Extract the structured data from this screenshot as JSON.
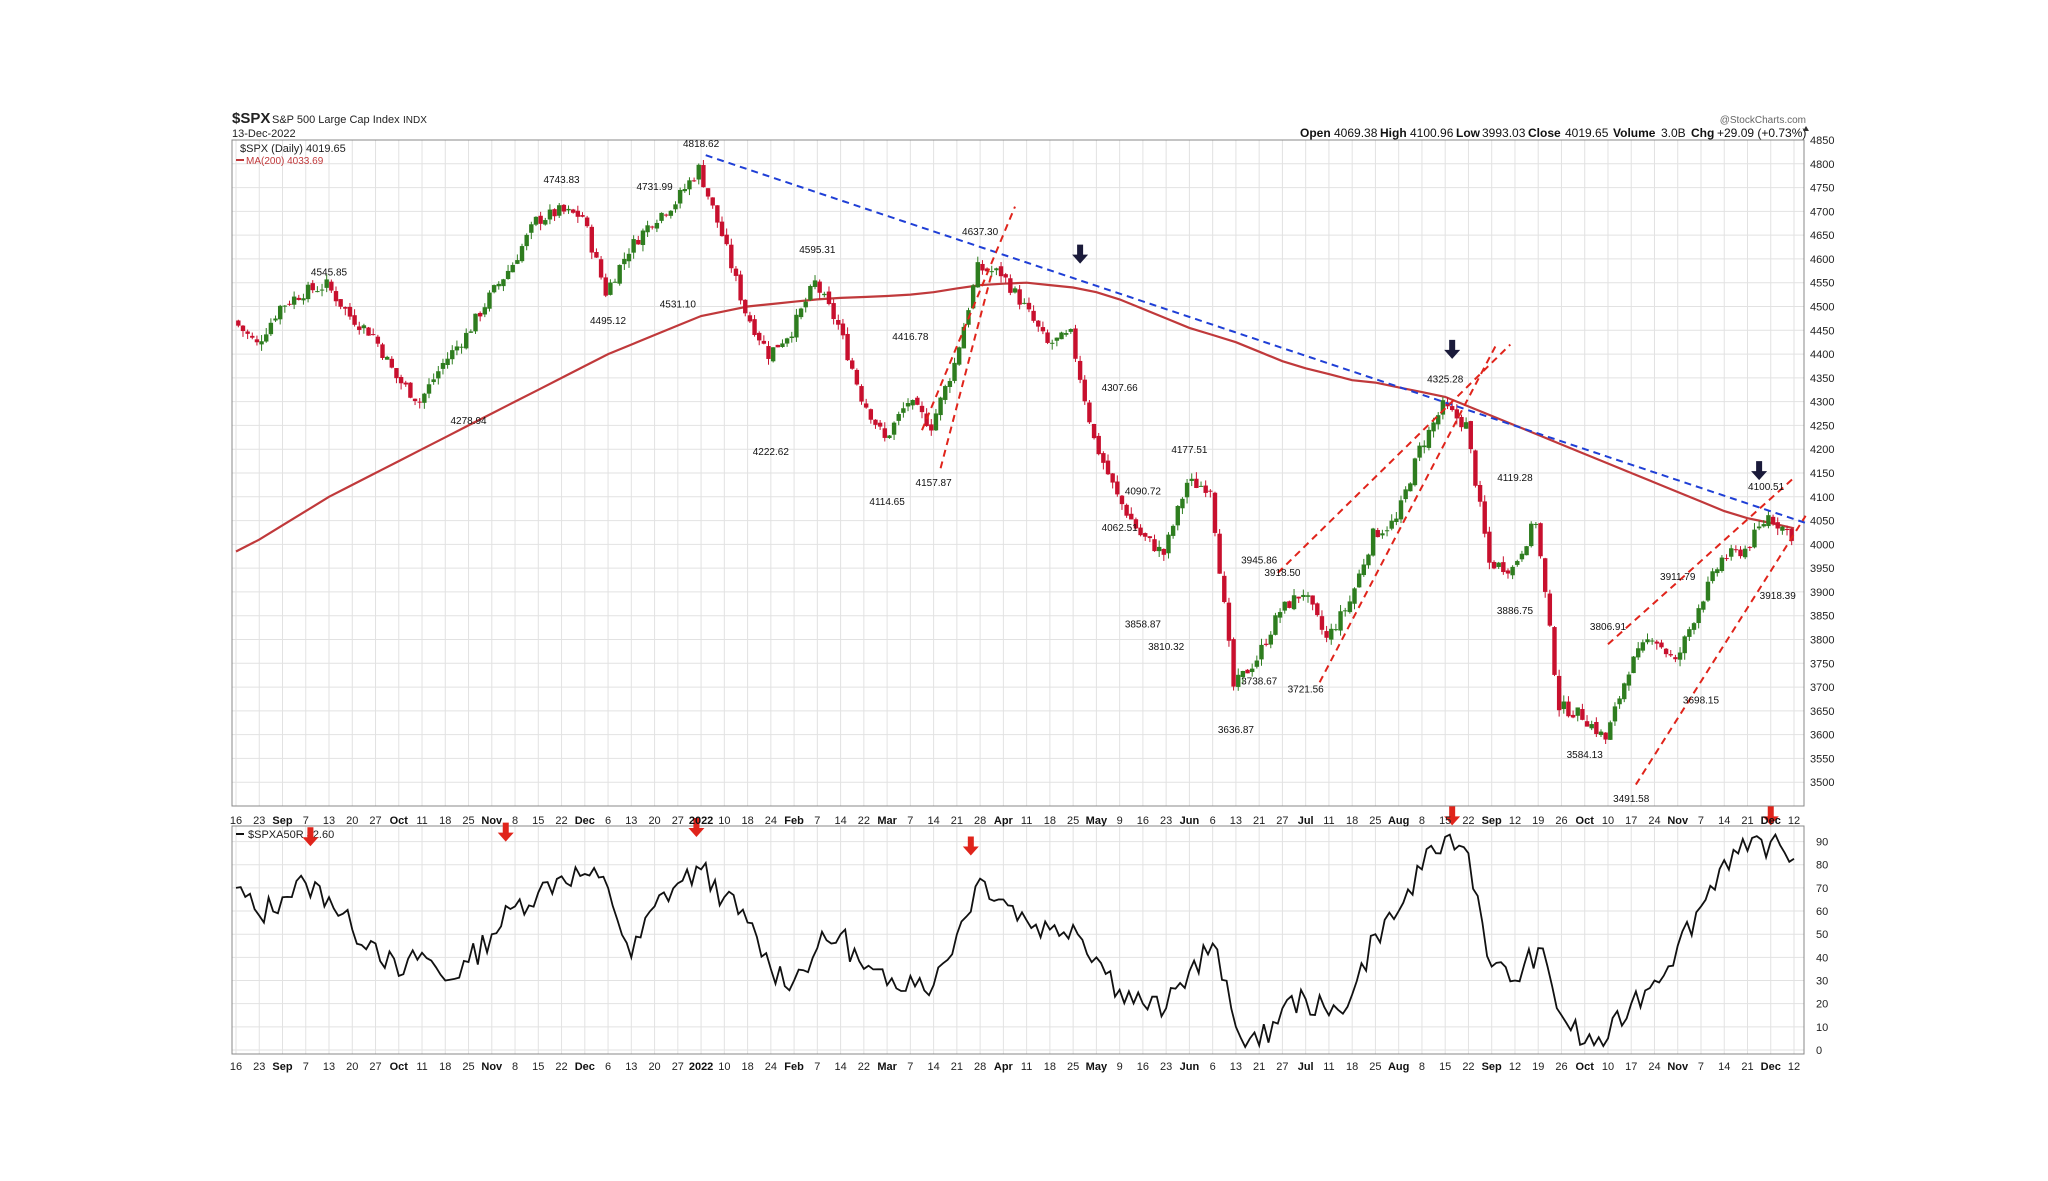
{
  "header": {
    "symbol": "$SPX",
    "name": "S&P 500 Large Cap Index",
    "exchange": "INDX",
    "date": "13-Dec-2022",
    "credit": "@StockCharts.com",
    "quote": {
      "open_label": "Open",
      "open": "4069.38",
      "high_label": "High",
      "high": "4100.96",
      "low_label": "Low",
      "low": "3993.03",
      "close_label": "Close",
      "close": "4019.65",
      "volume_label": "Volume",
      "volume": "3.0B",
      "chg_label": "Chg",
      "chg": "+29.09 (+0.73%)"
    },
    "legend_price": "$SPX (Daily) 4019.65",
    "legend_ma": "MA(200) 4033.69",
    "legend_breadth": "$SPXA50R 82.60"
  },
  "colors": {
    "up": "#2e7d1f",
    "down": "#c8102e",
    "ma": "#c0393b",
    "trend_blue": "#1f3fd6",
    "channel_red": "#e0241b",
    "arrow_dark": "#1a1a3a",
    "arrow_red": "#e0241b",
    "grid": "#e2e2e2"
  },
  "x_labels": [
    {
      "t": "16",
      "b": false
    },
    {
      "t": "23",
      "b": false
    },
    {
      "t": "Sep",
      "b": true
    },
    {
      "t": "7",
      "b": false
    },
    {
      "t": "13",
      "b": false
    },
    {
      "t": "20",
      "b": false
    },
    {
      "t": "27",
      "b": false
    },
    {
      "t": "Oct",
      "b": true
    },
    {
      "t": "11",
      "b": false
    },
    {
      "t": "18",
      "b": false
    },
    {
      "t": "25",
      "b": false
    },
    {
      "t": "Nov",
      "b": true
    },
    {
      "t": "8",
      "b": false
    },
    {
      "t": "15",
      "b": false
    },
    {
      "t": "22",
      "b": false
    },
    {
      "t": "Dec",
      "b": true
    },
    {
      "t": "6",
      "b": false
    },
    {
      "t": "13",
      "b": false
    },
    {
      "t": "20",
      "b": false
    },
    {
      "t": "27",
      "b": false
    },
    {
      "t": "2022",
      "b": true
    },
    {
      "t": "10",
      "b": false
    },
    {
      "t": "18",
      "b": false
    },
    {
      "t": "24",
      "b": false
    },
    {
      "t": "Feb",
      "b": true
    },
    {
      "t": "7",
      "b": false
    },
    {
      "t": "14",
      "b": false
    },
    {
      "t": "22",
      "b": false
    },
    {
      "t": "Mar",
      "b": true
    },
    {
      "t": "7",
      "b": false
    },
    {
      "t": "14",
      "b": false
    },
    {
      "t": "21",
      "b": false
    },
    {
      "t": "28",
      "b": false
    },
    {
      "t": "Apr",
      "b": true
    },
    {
      "t": "11",
      "b": false
    },
    {
      "t": "18",
      "b": false
    },
    {
      "t": "25",
      "b": false
    },
    {
      "t": "May",
      "b": true
    },
    {
      "t": "9",
      "b": false
    },
    {
      "t": "16",
      "b": false
    },
    {
      "t": "23",
      "b": false
    },
    {
      "t": "Jun",
      "b": true
    },
    {
      "t": "6",
      "b": false
    },
    {
      "t": "13",
      "b": false
    },
    {
      "t": "21",
      "b": false
    },
    {
      "t": "27",
      "b": false
    },
    {
      "t": "Jul",
      "b": true
    },
    {
      "t": "11",
      "b": false
    },
    {
      "t": "18",
      "b": false
    },
    {
      "t": "25",
      "b": false
    },
    {
      "t": "Aug",
      "b": true
    },
    {
      "t": "8",
      "b": false
    },
    {
      "t": "15",
      "b": false
    },
    {
      "t": "22",
      "b": false
    },
    {
      "t": "Sep",
      "b": true
    },
    {
      "t": "12",
      "b": false
    },
    {
      "t": "19",
      "b": false
    },
    {
      "t": "26",
      "b": false
    },
    {
      "t": "Oct",
      "b": true
    },
    {
      "t": "10",
      "b": false
    },
    {
      "t": "17",
      "b": false
    },
    {
      "t": "24",
      "b": false
    },
    {
      "t": "Nov",
      "b": true
    },
    {
      "t": "7",
      "b": false
    },
    {
      "t": "14",
      "b": false
    },
    {
      "t": "21",
      "b": false
    },
    {
      "t": "Dec",
      "b": true
    },
    {
      "t": "12",
      "b": false
    }
  ],
  "chart_data": [
    {
      "type": "line",
      "panel": "price",
      "x": [
        "16",
        "23",
        "Sep",
        "7",
        "13",
        "20",
        "27",
        "Oct",
        "11",
        "18",
        "25",
        "Nov",
        "8",
        "15",
        "22",
        "Dec",
        "6",
        "13",
        "20",
        "27",
        "2022",
        "10",
        "18",
        "24",
        "Feb",
        "7",
        "14",
        "22",
        "Mar",
        "7",
        "14",
        "21",
        "28",
        "Apr",
        "11",
        "18",
        "25",
        "May",
        "9",
        "16",
        "23",
        "Jun",
        "6",
        "13",
        "21",
        "27",
        "Jul",
        "11",
        "18",
        "25",
        "Aug",
        "8",
        "15",
        "22",
        "Sep",
        "12",
        "19",
        "26",
        "Oct",
        "10",
        "17",
        "24",
        "Nov",
        "7",
        "14",
        "21",
        "Dec",
        "12"
      ],
      "ylim": [
        3450,
        4850
      ],
      "yticks": [
        3500,
        3550,
        3600,
        3650,
        3700,
        3750,
        3800,
        3850,
        3900,
        3950,
        4000,
        4050,
        4100,
        4150,
        4200,
        4250,
        4300,
        4350,
        4400,
        4450,
        4500,
        4550,
        4600,
        4650,
        4700,
        4750,
        4800,
        4850
      ],
      "series": [
        {
          "name": "$SPX (Daily)",
          "style": "candlestick",
          "values": [
            4470,
            4420,
            4500,
            4530,
            4545,
            4480,
            4440,
            4350,
            4300,
            4380,
            4440,
            4520,
            4590,
            4680,
            4700,
            4690,
            4530,
            4620,
            4680,
            4720,
            4790,
            4650,
            4490,
            4400,
            4450,
            4550,
            4460,
            4310,
            4220,
            4300,
            4250,
            4380,
            4580,
            4570,
            4500,
            4420,
            4440,
            4220,
            4100,
            4020,
            3980,
            4130,
            4120,
            3700,
            3760,
            3860,
            3900,
            3800,
            3880,
            4020,
            4050,
            4200,
            4290,
            4250,
            3960,
            3950,
            4050,
            3660,
            3640,
            3590,
            3740,
            3810,
            3750,
            3870,
            3970,
            3990,
            4060,
            4019.65
          ]
        },
        {
          "name": "MA(200)",
          "style": "line",
          "values": [
            3985,
            4010,
            4040,
            4070,
            4100,
            4125,
            4150,
            4175,
            4200,
            4225,
            4250,
            4275,
            4300,
            4325,
            4350,
            4375,
            4400,
            4420,
            4440,
            4460,
            4480,
            4490,
            4500,
            4505,
            4510,
            4515,
            4518,
            4520,
            4522,
            4525,
            4530,
            4538,
            4545,
            4548,
            4550,
            4545,
            4540,
            4530,
            4515,
            4495,
            4475,
            4455,
            4440,
            4425,
            4405,
            4385,
            4370,
            4358,
            4345,
            4340,
            4330,
            4320,
            4310,
            4290,
            4270,
            4250,
            4230,
            4210,
            4190,
            4170,
            4150,
            4130,
            4110,
            4090,
            4070,
            4055,
            4045,
            4033.69
          ]
        }
      ],
      "annotations": [
        "4545.85",
        "4278.94",
        "4743.83",
        "4495.12",
        "4731.99",
        "4531.10",
        "4818.62",
        "4222.62",
        "4595.31",
        "4114.65",
        "4416.78",
        "4157.87",
        "4637.30",
        "4307.66",
        "4062.51",
        "4090.72",
        "3858.87",
        "3810.32",
        "4177.51",
        "3636.87",
        "3945.86",
        "3738.67",
        "3918.50",
        "3721.56",
        "4325.28",
        "4119.28",
        "3886.75",
        "3584.13",
        "3806.91",
        "3491.58",
        "3911.79",
        "3698.15",
        "4100.51",
        "3918.39"
      ]
    },
    {
      "type": "line",
      "panel": "breadth",
      "name": "$SPXA50R",
      "ylim": [
        0,
        95
      ],
      "yticks": [
        0,
        10,
        20,
        30,
        40,
        50,
        60,
        70,
        80,
        90
      ],
      "values": [
        70,
        58,
        66,
        72,
        66,
        52,
        46,
        32,
        42,
        30,
        38,
        50,
        62,
        68,
        75,
        76,
        70,
        40,
        62,
        72,
        78,
        66,
        55,
        35,
        30,
        44,
        50,
        35,
        28,
        32,
        28,
        50,
        74,
        65,
        56,
        52,
        54,
        40,
        26,
        20,
        18,
        34,
        46,
        10,
        2,
        18,
        22,
        15,
        24,
        50,
        60,
        78,
        92,
        85,
        36,
        30,
        44,
        15,
        3,
        5,
        20,
        30,
        45,
        62,
        82,
        86,
        90,
        82.6
      ]
    }
  ],
  "labels": [
    {
      "t": "4545.85",
      "i": 4,
      "v": 4565,
      "pos": "above"
    },
    {
      "t": "4278.94",
      "i": 10,
      "v": 4270,
      "pos": "below"
    },
    {
      "t": "4743.83",
      "i": 14,
      "v": 4760,
      "pos": "above"
    },
    {
      "t": "4495.12",
      "i": 16,
      "v": 4480,
      "pos": "below"
    },
    {
      "t": "4731.99",
      "i": 18,
      "v": 4745,
      "pos": "above"
    },
    {
      "t": "4531.10",
      "i": 19,
      "v": 4515,
      "pos": "below"
    },
    {
      "t": "4818.62",
      "i": 20,
      "v": 4835,
      "pos": "above"
    },
    {
      "t": "4222.62",
      "i": 23,
      "v": 4205,
      "pos": "below"
    },
    {
      "t": "4595.31",
      "i": 25,
      "v": 4612,
      "pos": "above"
    },
    {
      "t": "4114.65",
      "i": 28,
      "v": 4100,
      "pos": "below"
    },
    {
      "t": "4416.78",
      "i": 29,
      "v": 4430,
      "pos": "above"
    },
    {
      "t": "4157.87",
      "i": 30,
      "v": 4140,
      "pos": "below"
    },
    {
      "t": "4637.30",
      "i": 32,
      "v": 4650,
      "pos": "above"
    },
    {
      "t": "4307.66",
      "i": 38,
      "v": 4322,
      "pos": "above"
    },
    {
      "t": "4062.51",
      "i": 38,
      "v": 4045,
      "pos": "below"
    },
    {
      "t": "4090.72",
      "i": 39,
      "v": 4105,
      "pos": "above"
    },
    {
      "t": "3858.87",
      "i": 39,
      "v": 3842,
      "pos": "below"
    },
    {
      "t": "3810.32",
      "i": 40,
      "v": 3795,
      "pos": "below"
    },
    {
      "t": "4177.51",
      "i": 41,
      "v": 4192,
      "pos": "above"
    },
    {
      "t": "3636.87",
      "i": 43,
      "v": 3620,
      "pos": "below"
    },
    {
      "t": "3945.86",
      "i": 44,
      "v": 3960,
      "pos": "above"
    },
    {
      "t": "3738.67",
      "i": 44,
      "v": 3722,
      "pos": "below"
    },
    {
      "t": "3918.50",
      "i": 45,
      "v": 3933,
      "pos": "above"
    },
    {
      "t": "3721.56",
      "i": 46,
      "v": 3705,
      "pos": "below"
    },
    {
      "t": "4325.28",
      "i": 52,
      "v": 4340,
      "pos": "above"
    },
    {
      "t": "4119.28",
      "i": 55,
      "v": 4133,
      "pos": "above"
    },
    {
      "t": "3886.75",
      "i": 55,
      "v": 3870,
      "pos": "below"
    },
    {
      "t": "3584.13",
      "i": 58,
      "v": 3568,
      "pos": "below"
    },
    {
      "t": "3806.91",
      "i": 59,
      "v": 3820,
      "pos": "above"
    },
    {
      "t": "3491.58",
      "i": 60,
      "v": 3475,
      "pos": "below"
    },
    {
      "t": "3911.79",
      "i": 62,
      "v": 3925,
      "pos": "above"
    },
    {
      "t": "3698.15",
      "i": 63,
      "v": 3682,
      "pos": "below"
    },
    {
      "t": "4100.51",
      "i": 65.8,
      "v": 4114,
      "pos": "above"
    },
    {
      "t": "3918.39",
      "i": 66.3,
      "v": 3902,
      "pos": "below"
    }
  ],
  "trendlines": [
    {
      "color": "trend_blue",
      "dash": true,
      "from": [
        20.2,
        4818
      ],
      "to": [
        67.5,
        4045
      ]
    },
    {
      "color": "channel_red",
      "dash": true,
      "from": [
        29.5,
        4240
      ],
      "to": [
        33.5,
        4710
      ]
    },
    {
      "color": "channel_red",
      "dash": true,
      "from": [
        30.3,
        4160
      ],
      "to": [
        32.5,
        4570
      ]
    },
    {
      "color": "channel_red",
      "dash": true,
      "from": [
        44.8,
        3940
      ],
      "to": [
        54.8,
        4420
      ]
    },
    {
      "color": "channel_red",
      "dash": true,
      "from": [
        46.6,
        3710
      ],
      "to": [
        54.2,
        4420
      ]
    },
    {
      "color": "channel_red",
      "dash": true,
      "from": [
        59.0,
        3790
      ],
      "to": [
        67.0,
        4140
      ]
    },
    {
      "color": "channel_red",
      "dash": true,
      "from": [
        60.2,
        3495
      ],
      "to": [
        67.5,
        4060
      ]
    }
  ],
  "arrows": {
    "price": [
      {
        "i": 36.3,
        "v": 4590
      },
      {
        "i": 52.3,
        "v": 4390
      },
      {
        "i": 65.5,
        "v": 4135
      }
    ],
    "breadth": [
      {
        "i": 3.2,
        "v": 88
      },
      {
        "i": 11.6,
        "v": 90
      },
      {
        "i": 19.8,
        "v": 92
      },
      {
        "i": 31.6,
        "v": 84
      },
      {
        "i": 52.3,
        "v": 97
      },
      {
        "i": 66,
        "v": 97
      }
    ]
  }
}
